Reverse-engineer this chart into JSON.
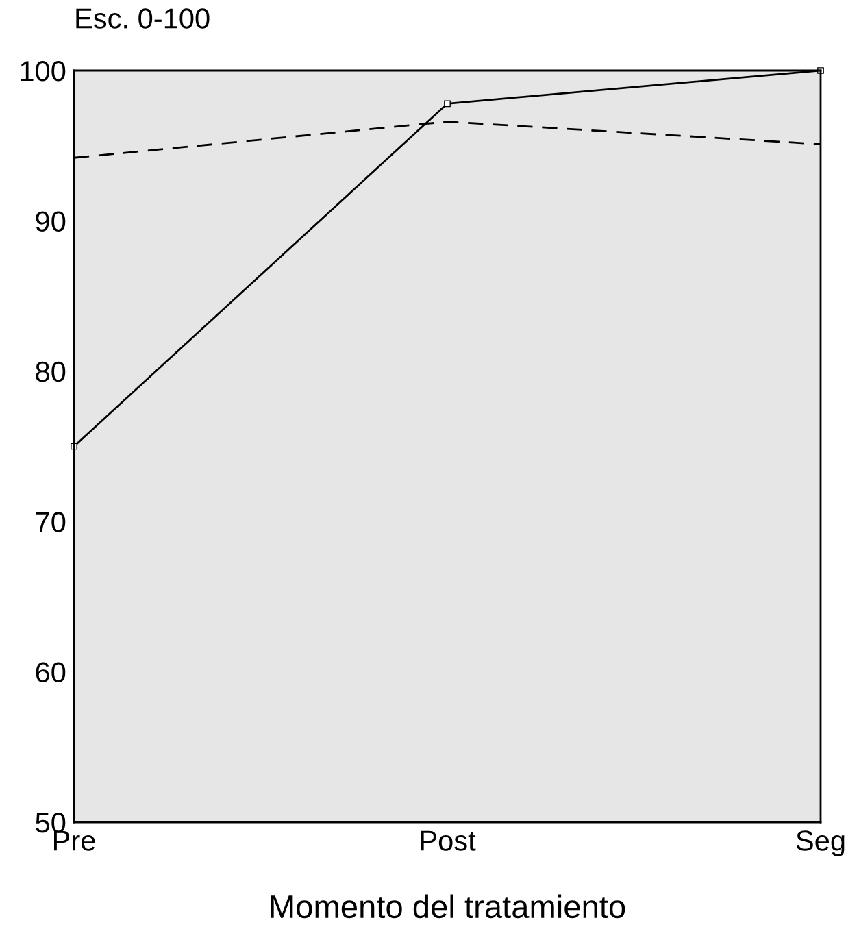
{
  "chart_data": {
    "type": "line",
    "ylabel": "Esc. 0-100",
    "xlabel": "Momento del tratamiento",
    "categories": [
      "Pre",
      "Post",
      "Seg"
    ],
    "series": [
      {
        "color": "#000000",
        "values": [
          75.0,
          97.8,
          100.0
        ],
        "line_style": "solid",
        "marker": "square"
      },
      {
        "color": "#000000",
        "values": [
          94.2,
          96.6,
          95.1
        ],
        "line_style": "dashed",
        "marker": "none"
      }
    ],
    "ylim": [
      50,
      100
    ],
    "yticks": [
      50,
      60,
      70,
      80,
      90,
      100
    ],
    "grid": false
  }
}
